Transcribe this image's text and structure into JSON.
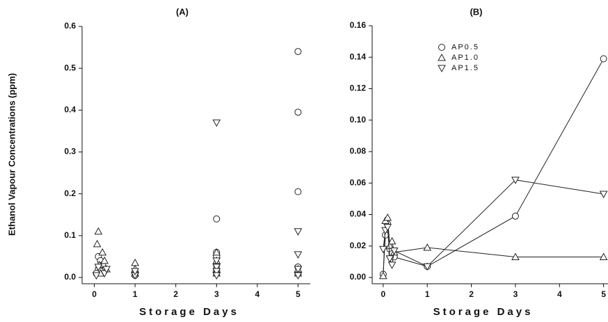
{
  "chart_data": [
    {
      "type": "scatter",
      "title": "(A)",
      "x_label": "Storage Days",
      "y_label": "Ethanol Vapour Concentrations (ppm)",
      "xlim": [
        -0.3,
        5.3
      ],
      "xticks": [
        0,
        1,
        2,
        3,
        4,
        5
      ],
      "ylim": [
        -0.015,
        0.6
      ],
      "yticks": [
        {
          "value": 0,
          "label": "0.0"
        },
        0.1,
        0.2,
        0.3,
        0.4,
        0.5,
        0.6
      ],
      "series": [
        {
          "marker": "circle",
          "color": "#222",
          "x": [
            0.1,
            0.15,
            0.2,
            0.1,
            0.15,
            0.05,
            1,
            1,
            3,
            3,
            3,
            3,
            3,
            3,
            5,
            5,
            5,
            5,
            5
          ],
          "values": [
            0.05,
            0.04,
            0.03,
            0.02,
            0.015,
            0.01,
            0.01,
            0.005,
            0.14,
            0.06,
            0.05,
            0.03,
            0.02,
            0.01,
            0.54,
            0.395,
            0.205,
            0.025,
            0.01
          ]
        },
        {
          "marker": "triangle-up",
          "color": "#222",
          "x": [
            0.1,
            0.07,
            0.2,
            0.25,
            0.12,
            0.3,
            0.15,
            1,
            1,
            1,
            3,
            3,
            3,
            3,
            5,
            5
          ],
          "values": [
            0.11,
            0.08,
            0.06,
            0.04,
            0.03,
            0.02,
            0.01,
            0.035,
            0.02,
            0.01,
            0.06,
            0.04,
            0.02,
            0.01,
            0.02,
            0.01
          ]
        },
        {
          "marker": "triangle-down",
          "color": "#222",
          "x": [
            0.1,
            0.25,
            0.05,
            0.3,
            1,
            1,
            3,
            3,
            3,
            3,
            3,
            5,
            5,
            5,
            5
          ],
          "values": [
            0.025,
            0.01,
            0.005,
            0.02,
            0.005,
            0.015,
            0.37,
            0.04,
            0.025,
            0.015,
            0.005,
            0.11,
            0.055,
            0.02,
            0.005
          ]
        }
      ]
    },
    {
      "type": "line",
      "title": "(B)",
      "x_label": "Storage Days",
      "legend": "upper left",
      "xlim": [
        -0.25,
        5.1
      ],
      "xticks": [
        0,
        1,
        2,
        3,
        4,
        5
      ],
      "ylim": [
        -0.004,
        0.16
      ],
      "yticks": [
        {
          "value": 0,
          "label": "0.00"
        },
        {
          "value": 0.02,
          "label": "0.02"
        },
        {
          "value": 0.04,
          "label": "0.04"
        },
        {
          "value": 0.06,
          "label": "0.06"
        },
        {
          "value": 0.08,
          "label": "0.08"
        },
        {
          "value": 0.1,
          "label": "0.10"
        },
        {
          "value": 0.12,
          "label": "0.12"
        },
        {
          "value": 0.14,
          "label": "0.14"
        },
        {
          "value": 0.16,
          "label": "0.16"
        }
      ],
      "series": [
        {
          "name": "AP0.5",
          "marker": "circle",
          "color": "#222",
          "x": [
            0,
            0.05,
            0.1,
            0.15,
            0.2,
            0.25,
            1,
            3,
            5
          ],
          "values": [
            0.002,
            0.027,
            0.034,
            0.018,
            0.015,
            0.013,
            0.007,
            0.039,
            0.139
          ]
        },
        {
          "name": "AP1.0",
          "marker": "triangle-up",
          "color": "#222",
          "x": [
            0,
            0.05,
            0.1,
            0.15,
            0.2,
            0.25,
            1,
            3,
            5
          ],
          "values": [
            0.001,
            0.036,
            0.038,
            0.02,
            0.023,
            0.016,
            0.019,
            0.013,
            0.013
          ]
        },
        {
          "name": "AP1.5",
          "marker": "triangle-down",
          "color": "#222",
          "x": [
            0,
            0.05,
            0.1,
            0.15,
            0.2,
            0.25,
            1,
            3,
            5
          ],
          "values": [
            0.018,
            0.03,
            0.032,
            0.012,
            0.008,
            0.017,
            0.007,
            0.062,
            0.053
          ]
        }
      ]
    }
  ]
}
